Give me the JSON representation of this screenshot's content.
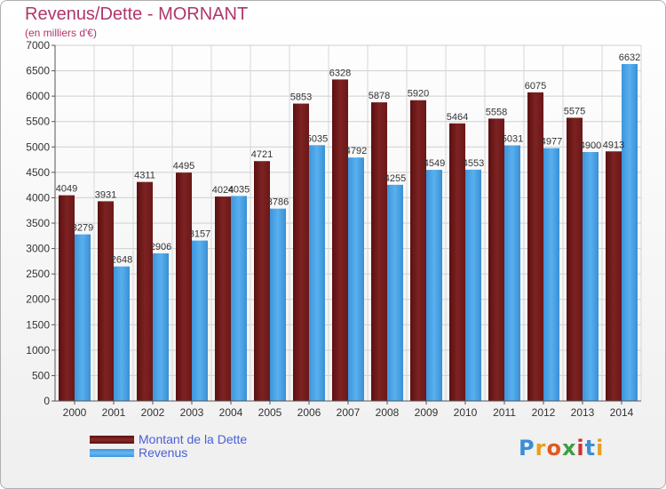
{
  "chart_data": {
    "type": "bar",
    "title": "Revenus/Dette - MORNANT",
    "subtitle": "(en milliers d'€)",
    "categories": [
      "2000",
      "2001",
      "2002",
      "2003",
      "2004",
      "2005",
      "2006",
      "2007",
      "2008",
      "2009",
      "2010",
      "2011",
      "2012",
      "2013",
      "2014"
    ],
    "series": [
      {
        "name": "Montant de la Dette",
        "color": "#7b2020",
        "values": [
          4049,
          3931,
          4311,
          4495,
          4024,
          4721,
          5853,
          6328,
          5878,
          5920,
          5464,
          5558,
          6075,
          5575,
          4913
        ]
      },
      {
        "name": "Revenus",
        "color": "#4aa3e6",
        "values": [
          3279,
          2648,
          2906,
          3157,
          4035,
          3786,
          5035,
          4792,
          4255,
          4549,
          4553,
          5031,
          4977,
          4900,
          6632
        ]
      }
    ],
    "ylim": [
      0,
      7000
    ],
    "yticks": [
      0,
      500,
      1000,
      1500,
      2000,
      2500,
      3000,
      3500,
      4000,
      4500,
      5000,
      5500,
      6000,
      6500,
      7000
    ],
    "grid": true,
    "legend_position": "bottom-left"
  },
  "logo": {
    "text": "Proxiti"
  }
}
